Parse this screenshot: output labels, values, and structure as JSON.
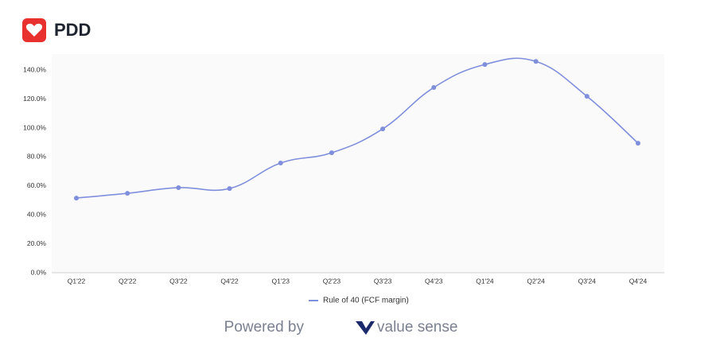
{
  "header": {
    "title": "PDD"
  },
  "footer": {
    "powered_by": "Powered by",
    "brand": "value sense"
  },
  "chart_data": {
    "type": "line",
    "categories": [
      "Q1'22",
      "Q2'22",
      "Q3'22",
      "Q4'22",
      "Q1'23",
      "Q2'23",
      "Q3'23",
      "Q4'23",
      "Q1'24",
      "Q2'24",
      "Q3'24",
      "Q4'24"
    ],
    "series": [
      {
        "name": "Rule of 40 (FCF margin)",
        "color": "#7f8fdc",
        "values": [
          51.6,
          54.9,
          58.8,
          58.2,
          75.8,
          82.9,
          99.4,
          128.0,
          143.9,
          146.0,
          121.9,
          89.5
        ]
      }
    ],
    "ylim": [
      0,
      150
    ],
    "yticks": [
      {
        "value": 0,
        "label": "0.0%"
      },
      {
        "value": 20,
        "label": "20.0%"
      },
      {
        "value": 40,
        "label": "40.0%"
      },
      {
        "value": 60,
        "label": "60.0%"
      },
      {
        "value": 80,
        "label": "80.0%"
      },
      {
        "value": 100,
        "label": "100.0%"
      },
      {
        "value": 120,
        "label": "120.0%"
      },
      {
        "value": 140,
        "label": "140.0%"
      }
    ],
    "grid": false,
    "legend": "bottom"
  }
}
